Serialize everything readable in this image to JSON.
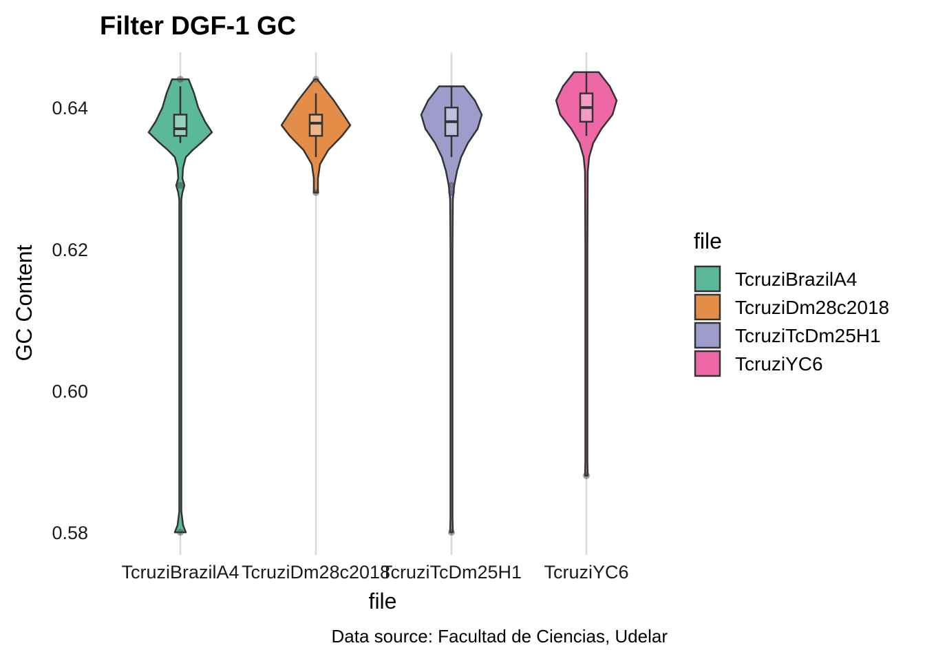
{
  "chart_data": {
    "type": "violin",
    "title": "Filter DGF-1 GC",
    "xlabel": "file",
    "ylabel": "GC Content",
    "caption": "Data source: Facultad de Ciencias, Udelar",
    "ylim": [
      0.5768,
      0.6478
    ],
    "yticks": [
      "0.58",
      "0.60",
      "0.62",
      "0.64"
    ],
    "grid": "vertical-major",
    "legend": {
      "title": "file",
      "position": "right",
      "entries": [
        "TcruziBrazilA4",
        "TcruziDm28c2018",
        "TcruziTcDm25H1",
        "TcruziYC6"
      ]
    },
    "categories": [
      "TcruziBrazilA4",
      "TcruziDm28c2018",
      "TcruziTcDm25H1",
      "TcruziYC6"
    ],
    "colors": [
      "#5BB89A",
      "#E48D48",
      "#9E9CCB",
      "#EE68A8"
    ],
    "series": [
      {
        "name": "TcruziBrazilA4",
        "min": 0.58,
        "max": 0.644,
        "box": {
          "q1": 0.636,
          "median": 0.637,
          "q3": 0.639,
          "whisker_low": 0.635,
          "whisker_high": 0.643
        },
        "outliers": [
          0.644,
          0.629,
          0.58
        ],
        "density": [
          [
            0.644,
            12
          ],
          [
            0.642,
            20
          ],
          [
            0.64,
            26
          ],
          [
            0.638,
            36
          ],
          [
            0.6365,
            46
          ],
          [
            0.635,
            30
          ],
          [
            0.634,
            18
          ],
          [
            0.633,
            8
          ],
          [
            0.6315,
            4
          ],
          [
            0.63,
            3
          ],
          [
            0.629,
            6
          ],
          [
            0.628,
            3
          ],
          [
            0.627,
            1.5
          ],
          [
            0.62,
            1.5
          ],
          [
            0.6,
            1.5
          ],
          [
            0.583,
            1.5
          ],
          [
            0.581,
            4
          ],
          [
            0.58,
            8
          ]
        ]
      },
      {
        "name": "TcruziDm28c2018",
        "min": 0.628,
        "max": 0.644,
        "box": {
          "q1": 0.636,
          "median": 0.6378,
          "q3": 0.639,
          "whisker_low": 0.633,
          "whisker_high": 0.642
        },
        "outliers": [
          0.644,
          0.628
        ],
        "density": [
          [
            0.644,
            2
          ],
          [
            0.643,
            10
          ],
          [
            0.641,
            26
          ],
          [
            0.639,
            40
          ],
          [
            0.6375,
            50
          ],
          [
            0.636,
            38
          ],
          [
            0.634,
            18
          ],
          [
            0.632,
            6
          ],
          [
            0.63,
            3
          ],
          [
            0.628,
            3
          ]
        ]
      },
      {
        "name": "TcruziTcDm25H1",
        "min": 0.58,
        "max": 0.643,
        "box": {
          "q1": 0.636,
          "median": 0.638,
          "q3": 0.64,
          "whisker_low": 0.633,
          "whisker_high": 0.643
        },
        "outliers": [
          0.629,
          0.628,
          0.58
        ],
        "density": [
          [
            0.643,
            18
          ],
          [
            0.641,
            34
          ],
          [
            0.639,
            44
          ],
          [
            0.637,
            38
          ],
          [
            0.635,
            24
          ],
          [
            0.633,
            14
          ],
          [
            0.631,
            8
          ],
          [
            0.629,
            4
          ],
          [
            0.627,
            2
          ],
          [
            0.62,
            1.5
          ],
          [
            0.6,
            1.5
          ],
          [
            0.582,
            1.5
          ],
          [
            0.58,
            2
          ]
        ]
      },
      {
        "name": "TcruziYC6",
        "min": 0.588,
        "max": 0.645,
        "box": {
          "q1": 0.638,
          "median": 0.64,
          "q3": 0.642,
          "whisker_low": 0.636,
          "whisker_high": 0.645
        },
        "outliers": [
          0.588
        ],
        "density": [
          [
            0.645,
            18
          ],
          [
            0.643,
            34
          ],
          [
            0.641,
            44
          ],
          [
            0.639,
            38
          ],
          [
            0.637,
            22
          ],
          [
            0.635,
            10
          ],
          [
            0.633,
            4
          ],
          [
            0.631,
            2
          ],
          [
            0.62,
            1.5
          ],
          [
            0.6,
            1.5
          ],
          [
            0.59,
            1.5
          ],
          [
            0.588,
            2
          ]
        ]
      }
    ]
  }
}
